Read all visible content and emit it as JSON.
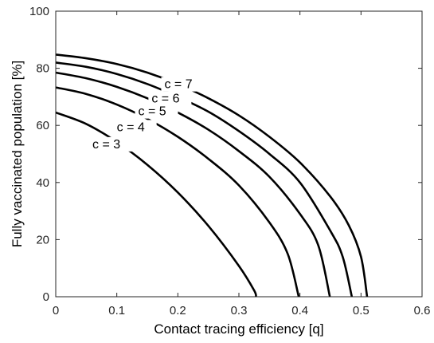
{
  "chart_data": {
    "type": "line",
    "title": "",
    "xlabel": "Contact tracing efficiency [q]",
    "ylabel": "Fully vaccinated population [%]",
    "xlim": [
      0,
      0.6
    ],
    "ylim": [
      0,
      100
    ],
    "xticks": [
      0,
      0.1,
      0.2,
      0.3,
      0.4,
      0.5,
      0.6
    ],
    "xtick_labels": [
      "0",
      "0.1",
      "0.2",
      "0.3",
      "0.4",
      "0.5",
      "0.6"
    ],
    "yticks": [
      0,
      20,
      40,
      60,
      80,
      100
    ],
    "ytick_labels": [
      "0",
      "20",
      "40",
      "60",
      "80",
      "100"
    ],
    "grid": false,
    "legend": "none",
    "line_color": "#000000",
    "series": [
      {
        "name": "c = 3",
        "label_at": [
          0.06,
          52
        ],
        "x": [
          0,
          0.05,
          0.1,
          0.15,
          0.2,
          0.25,
          0.3,
          0.325,
          0.328
        ],
        "y": [
          64.5,
          60.5,
          54.2,
          46.2,
          36.5,
          24.8,
          10.8,
          2.2,
          0
        ]
      },
      {
        "name": "c = 4",
        "label_at": [
          0.1,
          58
        ],
        "x": [
          0,
          0.05,
          0.1,
          0.15,
          0.2,
          0.25,
          0.3,
          0.35,
          0.38,
          0.398
        ],
        "y": [
          73.3,
          71,
          67.3,
          62.3,
          56,
          48.3,
          39,
          26,
          15,
          0
        ]
      },
      {
        "name": "c = 5",
        "label_at": [
          0.135,
          63.5
        ],
        "x": [
          0,
          0.05,
          0.1,
          0.15,
          0.2,
          0.25,
          0.3,
          0.35,
          0.4,
          0.43,
          0.449
        ],
        "y": [
          78.5,
          76.5,
          73.5,
          69.5,
          64.5,
          58.5,
          51,
          42,
          29,
          18,
          0
        ]
      },
      {
        "name": "c = 6",
        "label_at": [
          0.157,
          68
        ],
        "x": [
          0,
          0.05,
          0.1,
          0.15,
          0.2,
          0.25,
          0.3,
          0.35,
          0.4,
          0.45,
          0.47,
          0.485
        ],
        "y": [
          82,
          80.5,
          78,
          74.5,
          70,
          64.8,
          58,
          50,
          40,
          23,
          14,
          0
        ]
      },
      {
        "name": "c = 7",
        "label_at": [
          0.178,
          73
        ],
        "x": [
          0,
          0.05,
          0.1,
          0.15,
          0.2,
          0.25,
          0.3,
          0.35,
          0.4,
          0.45,
          0.48,
          0.5,
          0.51
        ],
        "y": [
          84.8,
          83.5,
          81.5,
          78.5,
          74.5,
          69.5,
          63.5,
          56,
          47,
          35,
          25,
          14,
          0
        ]
      }
    ]
  }
}
